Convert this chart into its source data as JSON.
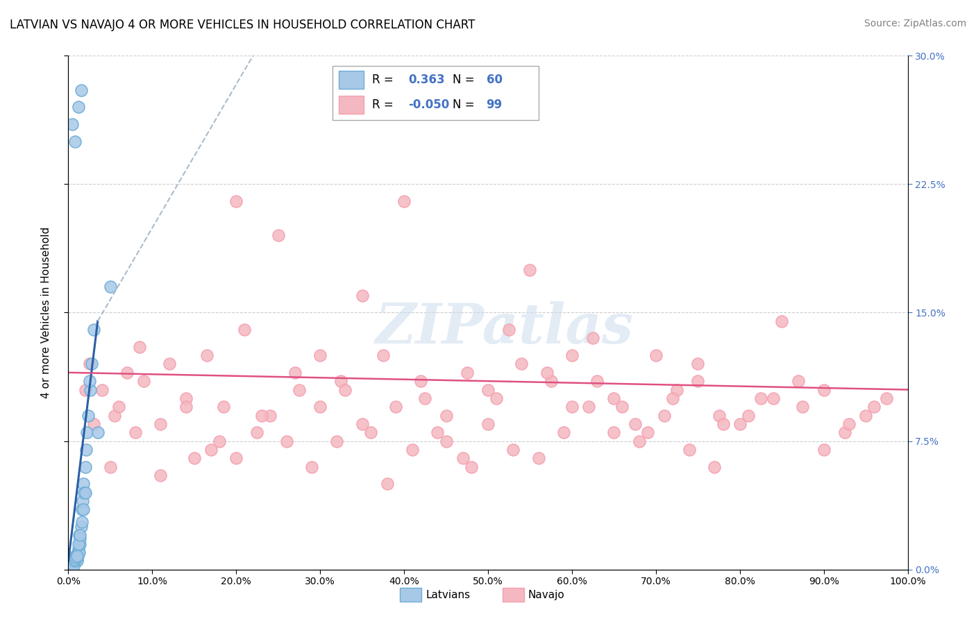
{
  "title": "LATVIAN VS NAVAJO 4 OR MORE VEHICLES IN HOUSEHOLD CORRELATION CHART",
  "source": "Source: ZipAtlas.com",
  "ylabel": "4 or more Vehicles in Household",
  "xlabel_ticks": [
    "0.0%",
    "10.0%",
    "20.0%",
    "30.0%",
    "40.0%",
    "50.0%",
    "60.0%",
    "70.0%",
    "80.0%",
    "90.0%",
    "100.0%"
  ],
  "ylabel_ticks": [
    "0.0%",
    "7.5%",
    "15.0%",
    "22.5%",
    "30.0%"
  ],
  "xlim": [
    0,
    100
  ],
  "ylim": [
    0,
    30
  ],
  "latvian_color": "#a8c8e8",
  "navajo_color": "#f4b8c0",
  "latvian_edge_color": "#6baed6",
  "navajo_edge_color": "#f4a0b0",
  "latvian_line_color": "#2b5fa5",
  "navajo_line_color": "#e05080",
  "right_tick_color": "#4472c4",
  "watermark": "ZIPatlas",
  "background_color": "#ffffff",
  "grid_color": "#cccccc",
  "lat_x": [
    0.1,
    0.15,
    0.2,
    0.25,
    0.3,
    0.35,
    0.4,
    0.45,
    0.5,
    0.55,
    0.6,
    0.65,
    0.7,
    0.75,
    0.8,
    0.85,
    0.9,
    0.95,
    1.0,
    1.05,
    1.1,
    1.15,
    1.2,
    1.25,
    1.3,
    1.35,
    1.4,
    1.5,
    1.6,
    1.7,
    1.8,
    1.9,
    2.0,
    2.1,
    2.2,
    2.4,
    2.6,
    2.8,
    3.0,
    0.2,
    0.3,
    0.4,
    0.5,
    0.6,
    0.7,
    0.8,
    0.9,
    1.0,
    1.2,
    1.4,
    1.6,
    1.8,
    2.0,
    2.5,
    3.5,
    5.0,
    0.5,
    0.8,
    1.2,
    1.5
  ],
  "lat_y": [
    0.3,
    0.4,
    0.5,
    0.6,
    0.5,
    0.3,
    0.4,
    0.6,
    0.5,
    0.7,
    0.4,
    0.6,
    0.5,
    0.4,
    0.6,
    0.5,
    0.7,
    0.8,
    0.6,
    0.5,
    1.0,
    0.8,
    1.2,
    1.0,
    2.0,
    1.5,
    1.8,
    2.5,
    3.5,
    4.0,
    5.0,
    4.5,
    6.0,
    7.0,
    8.0,
    9.0,
    10.5,
    12.0,
    14.0,
    0.2,
    0.3,
    0.4,
    0.3,
    0.2,
    0.5,
    0.6,
    0.7,
    0.8,
    1.5,
    2.0,
    2.8,
    3.5,
    4.5,
    11.0,
    8.0,
    16.5,
    26.0,
    25.0,
    27.0,
    28.0
  ],
  "nav_x": [
    2.5,
    4.0,
    5.5,
    7.0,
    8.5,
    11.0,
    14.0,
    16.5,
    18.5,
    20.0,
    22.5,
    25.0,
    27.5,
    30.0,
    32.5,
    35.0,
    37.5,
    40.0,
    42.5,
    45.0,
    47.5,
    50.0,
    52.5,
    55.0,
    57.5,
    60.0,
    62.5,
    65.0,
    67.5,
    70.0,
    72.5,
    75.0,
    77.5,
    80.0,
    82.5,
    85.0,
    87.5,
    90.0,
    92.5,
    95.0,
    97.5,
    3.0,
    6.0,
    9.0,
    12.0,
    15.0,
    18.0,
    21.0,
    24.0,
    27.0,
    30.0,
    33.0,
    36.0,
    39.0,
    42.0,
    45.0,
    48.0,
    51.0,
    54.0,
    57.0,
    60.0,
    63.0,
    66.0,
    69.0,
    72.0,
    75.0,
    78.0,
    81.0,
    84.0,
    87.0,
    90.0,
    93.0,
    96.0,
    2.0,
    5.0,
    8.0,
    11.0,
    14.0,
    17.0,
    20.0,
    23.0,
    26.0,
    29.0,
    32.0,
    35.0,
    38.0,
    41.0,
    44.0,
    47.0,
    50.0,
    53.0,
    56.0,
    59.0,
    62.0,
    65.0,
    68.0,
    71.0,
    74.0,
    77.0
  ],
  "nav_y": [
    12.0,
    10.5,
    9.0,
    11.5,
    13.0,
    8.5,
    10.0,
    12.5,
    9.5,
    21.5,
    8.0,
    19.5,
    10.5,
    9.5,
    11.0,
    16.0,
    12.5,
    21.5,
    10.0,
    9.0,
    11.5,
    10.5,
    14.0,
    17.5,
    11.0,
    9.5,
    13.5,
    10.0,
    8.5,
    12.5,
    10.5,
    11.0,
    9.0,
    8.5,
    10.0,
    14.5,
    9.5,
    10.5,
    8.0,
    9.0,
    10.0,
    8.5,
    9.5,
    11.0,
    12.0,
    6.5,
    7.5,
    14.0,
    9.0,
    11.5,
    12.5,
    10.5,
    8.0,
    9.5,
    11.0,
    7.5,
    6.0,
    10.0,
    12.0,
    11.5,
    12.5,
    11.0,
    9.5,
    8.0,
    10.0,
    12.0,
    8.5,
    9.0,
    10.0,
    11.0,
    7.0,
    8.5,
    9.5,
    10.5,
    6.0,
    8.0,
    5.5,
    9.5,
    7.0,
    6.5,
    9.0,
    7.5,
    6.0,
    7.5,
    8.5,
    5.0,
    7.0,
    8.0,
    6.5,
    8.5,
    7.0,
    6.5,
    8.0,
    9.5,
    8.0,
    7.5,
    9.0,
    7.0,
    6.0
  ],
  "lat_line_x0": 0,
  "lat_line_y0": 0.5,
  "lat_line_x1": 3.5,
  "lat_line_y1": 14.5,
  "lat_dash_x0": 3.5,
  "lat_dash_y0": 14.5,
  "lat_dash_x1": 22,
  "lat_dash_y1": 30,
  "nav_line_x0": 0,
  "nav_line_y0": 11.5,
  "nav_line_x1": 100,
  "nav_line_y1": 10.5
}
